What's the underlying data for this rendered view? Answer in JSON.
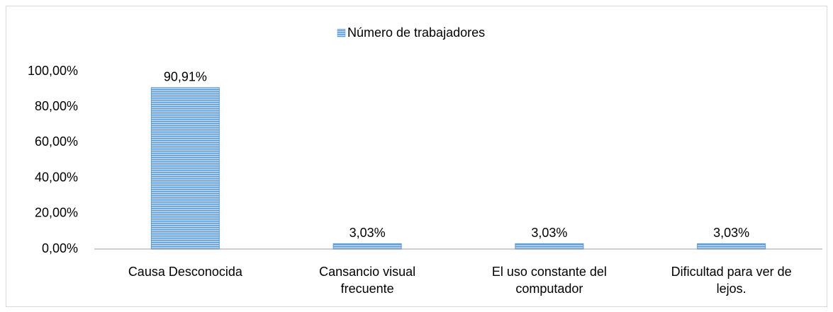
{
  "chart_data": {
    "type": "bar",
    "categories": [
      "Causa Desconocida",
      "Cansancio visual frecuente",
      "El uso constante del computador",
      "Dificultad para ver de lejos."
    ],
    "series": [
      {
        "name": "Número de trabajadores",
        "color": "#5b9bd5",
        "values": [
          90.91,
          3.03,
          3.03,
          3.03
        ],
        "value_labels": [
          "90,91%",
          "3,03%",
          "3,03%",
          "3,03%"
        ]
      }
    ],
    "ylim": [
      0,
      100
    ],
    "yticks": [
      {
        "value": 0,
        "label": "0,00%"
      },
      {
        "value": 20,
        "label": "20,00%"
      },
      {
        "value": 40,
        "label": "40,00%"
      },
      {
        "value": 60,
        "label": "60,00%"
      },
      {
        "value": 80,
        "label": "80,00%"
      },
      {
        "value": 100,
        "label": "100,00%"
      }
    ],
    "legend": "top",
    "grid": false
  }
}
